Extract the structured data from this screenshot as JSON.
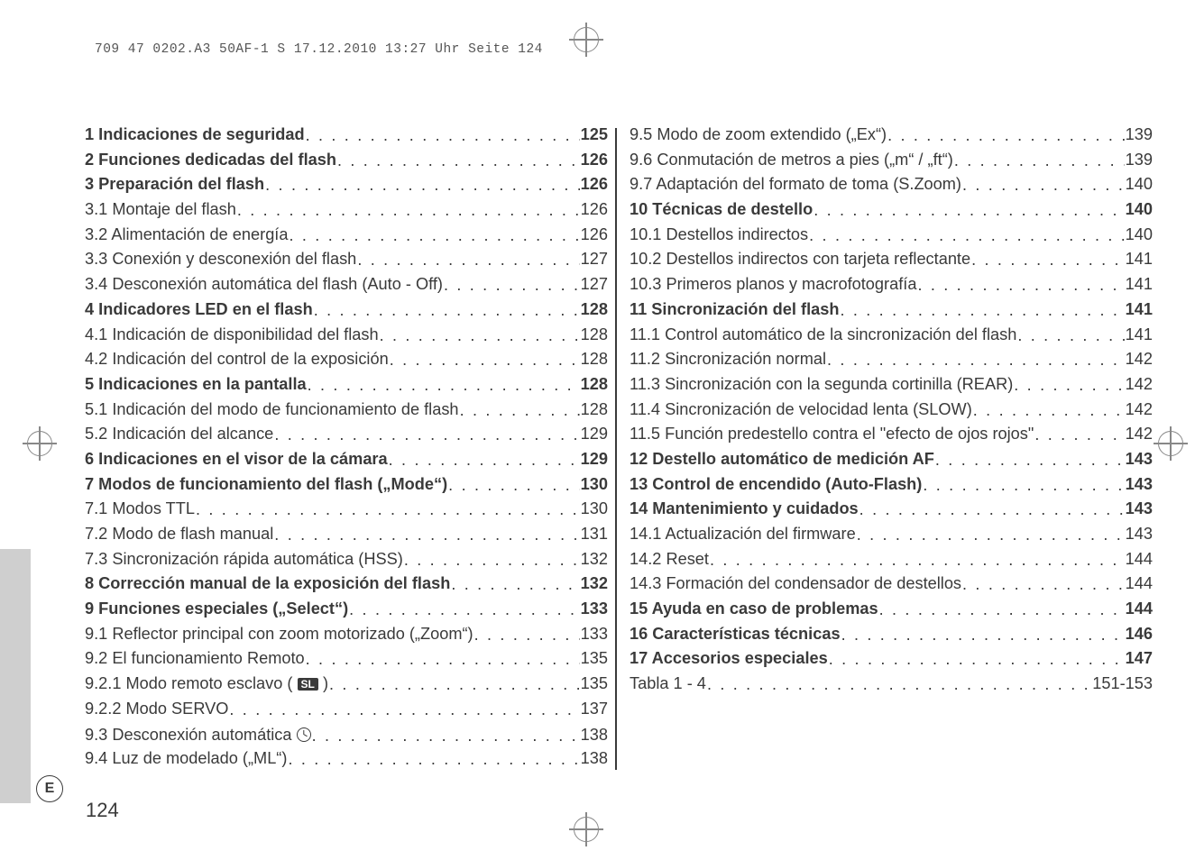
{
  "header": "709 47 0202.A3 50AF-1 S  17.12.2010  13:27 Uhr  Seite 124",
  "page_number": "124",
  "lang_code": "E",
  "left_col": [
    {
      "label": "1 Indicaciones de seguridad",
      "pg": "125",
      "chapter": true
    },
    {
      "label": "2 Funciones dedicadas del flash",
      "pg": "126",
      "chapter": true
    },
    {
      "label": "3 Preparación del flash",
      "pg": "126",
      "chapter": true
    },
    {
      "label": "3.1 Montaje del flash",
      "pg": "126"
    },
    {
      "label": "3.2 Alimentación de energía",
      "pg": "126"
    },
    {
      "label": "3.3 Conexión y desconexión del flash",
      "pg": "127"
    },
    {
      "label": "3.4 Desconexión automática del flash (Auto - Off)",
      "pg": "127"
    },
    {
      "label": "4 Indicadores LED en el flash",
      "pg": "128",
      "chapter": true
    },
    {
      "label": "4.1 Indicación de disponibilidad del flash",
      "pg": "128"
    },
    {
      "label": "4.2 Indicación del control de la exposición",
      "pg": "128"
    },
    {
      "label": "5 Indicaciones en la pantalla",
      "pg": "128",
      "chapter": true
    },
    {
      "label": "5.1 Indicación del modo de funcionamiento de flash",
      "pg": "128"
    },
    {
      "label": "5.2 Indicación del alcance",
      "pg": "129"
    },
    {
      "label": "6 Indicaciones en el visor de la cámara",
      "pg": "129",
      "chapter": true
    },
    {
      "label": "7 Modos de funcionamiento del flash („Mode“)",
      "pg": "130",
      "chapter": true
    },
    {
      "label": "7.1 Modos TTL",
      "pg": "130"
    },
    {
      "label": "7.2 Modo de flash manual",
      "pg": "131"
    },
    {
      "label": "7.3 Sincronización rápida automática (HSS)",
      "pg": "132"
    },
    {
      "label": "8 Corrección manual de la exposición del flash",
      "pg": "132",
      "chapter": true
    },
    {
      "label": "9 Funciones especiales („Select“)",
      "pg": "133",
      "chapter": true
    },
    {
      "label": "9.1 Reflector principal con zoom motorizado („Zoom“)",
      "pg": "133"
    },
    {
      "label": "9.2 El funcionamiento Remoto",
      "pg": "135"
    },
    {
      "label": "9.2.1 Modo remoto esclavo ( __SL__ )",
      "pg": "135"
    },
    {
      "label": "9.2.2 Modo SERVO",
      "pg": "137"
    },
    {
      "label": "9.3 Desconexión automática __CLOCK__",
      "pg": "138"
    },
    {
      "label": "9.4 Luz de modelado („ML“)",
      "pg": "138"
    }
  ],
  "right_col": [
    {
      "label": "9.5 Modo de zoom extendido („Ex“)",
      "pg": "139"
    },
    {
      "label": "9.6 Conmutación de metros a pies („m“ / „ft“)",
      "pg": "139"
    },
    {
      "label": "9.7 Adaptación del formato de toma (S.Zoom)",
      "pg": "140"
    },
    {
      "label": "10 Técnicas de destello",
      "pg": "140",
      "chapter": true
    },
    {
      "label": "10.1 Destellos indirectos",
      "pg": "140"
    },
    {
      "label": "10.2 Destellos indirectos con tarjeta reflectante",
      "pg": "141"
    },
    {
      "label": "10.3 Primeros planos y macrofotografía",
      "pg": "141"
    },
    {
      "label": "11 Sincronización del flash",
      "pg": "141",
      "chapter": true
    },
    {
      "label": "11.1 Control automático de la sincronización del flash",
      "pg": "141"
    },
    {
      "label": "11.2 Sincronización normal",
      "pg": "142"
    },
    {
      "label": "11.3 Sincronización con la segunda cortinilla (REAR)",
      "pg": "142"
    },
    {
      "label": "11.4 Sincronización de velocidad lenta (SLOW)",
      "pg": "142"
    },
    {
      "label": "11.5 Función predestello contra el \"efecto de ojos rojos\"",
      "pg": "142"
    },
    {
      "label": "12 Destello automático de medición AF",
      "pg": "143",
      "chapter": true
    },
    {
      "label": "13 Control de encendido (Auto-Flash)",
      "pg": "143",
      "chapter": true
    },
    {
      "label": "14 Mantenimiento y cuidados",
      "pg": "143",
      "chapter": true
    },
    {
      "label": "14.1 Actualización del firmware",
      "pg": "143"
    },
    {
      "label": "14.2 Reset",
      "pg": "144"
    },
    {
      "label": "14.3 Formación del condensador de destellos",
      "pg": "144"
    },
    {
      "label": "15 Ayuda en caso de problemas",
      "pg": "144",
      "chapter": true
    },
    {
      "label": "16 Características técnicas",
      "pg": "146",
      "chapter": true
    },
    {
      "label": "17 Accesorios especiales",
      "pg": "147",
      "chapter": true
    },
    {
      "label": "Tabla 1 - 4",
      "pg": "151-153"
    }
  ],
  "style": {
    "font_size_pt": 14,
    "text_color": "#3a3a3a",
    "background_color": "#ffffff",
    "bold_chapters": true,
    "divider_color": "#3a3a3a",
    "grey_tab_color": "#cfcfcf"
  }
}
